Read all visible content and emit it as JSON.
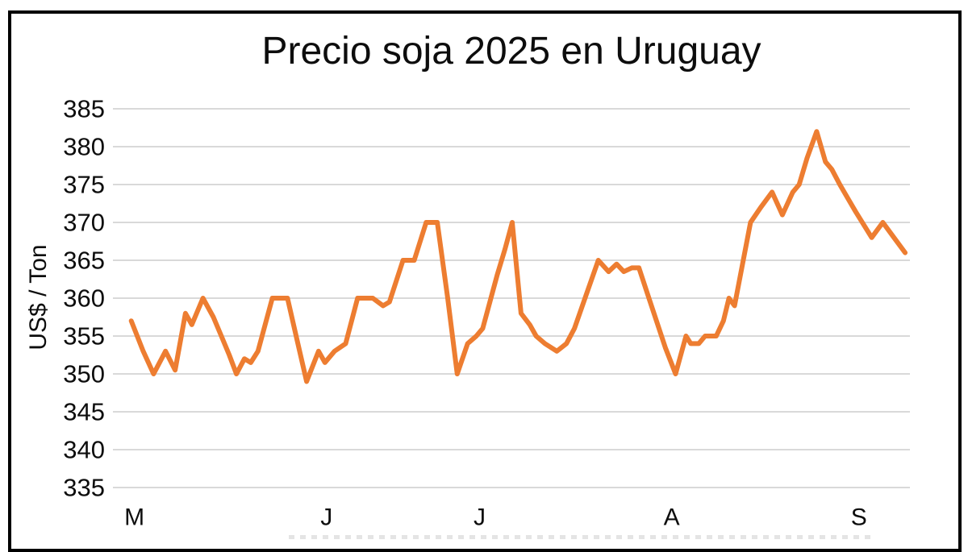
{
  "chart_data": {
    "type": "line",
    "title": "Precio soja 2025 en Uruguay",
    "ylabel": "US$ / Ton",
    "xlabel": "",
    "ylim": [
      335,
      385
    ],
    "y_ticks": [
      385,
      380,
      375,
      370,
      365,
      360,
      355,
      350,
      345,
      340,
      335
    ],
    "x_ticks": [
      {
        "label": "M",
        "pos": 0.027
      },
      {
        "label": "J",
        "pos": 0.268
      },
      {
        "label": "J",
        "pos": 0.46
      },
      {
        "label": "A",
        "pos": 0.701
      },
      {
        "label": "S",
        "pos": 0.936
      }
    ],
    "grid": true,
    "legend": "none",
    "colors": {
      "line": "#ED7D31",
      "gridline": "#D9D9D9",
      "border": "#000000",
      "text": "#0d0d0d"
    },
    "series": [
      {
        "name": "Precio soja (US$/Ton)",
        "points": [
          [
            0.023,
            357
          ],
          [
            0.038,
            353
          ],
          [
            0.051,
            350
          ],
          [
            0.066,
            353
          ],
          [
            0.078,
            350.5
          ],
          [
            0.091,
            358
          ],
          [
            0.099,
            356.5
          ],
          [
            0.113,
            360
          ],
          [
            0.126,
            357.5
          ],
          [
            0.136,
            355
          ],
          [
            0.146,
            352.5
          ],
          [
            0.155,
            350
          ],
          [
            0.165,
            352
          ],
          [
            0.173,
            351.5
          ],
          [
            0.182,
            353
          ],
          [
            0.191,
            356.5
          ],
          [
            0.2,
            360
          ],
          [
            0.21,
            360
          ],
          [
            0.219,
            360
          ],
          [
            0.231,
            354.5
          ],
          [
            0.243,
            349
          ],
          [
            0.258,
            353
          ],
          [
            0.266,
            351.5
          ],
          [
            0.278,
            353
          ],
          [
            0.292,
            354
          ],
          [
            0.307,
            360
          ],
          [
            0.316,
            360
          ],
          [
            0.326,
            360
          ],
          [
            0.339,
            359
          ],
          [
            0.347,
            359.5
          ],
          [
            0.364,
            365
          ],
          [
            0.378,
            365
          ],
          [
            0.393,
            370
          ],
          [
            0.407,
            370
          ],
          [
            0.42,
            360
          ],
          [
            0.432,
            350
          ],
          [
            0.445,
            354
          ],
          [
            0.456,
            355
          ],
          [
            0.464,
            356
          ],
          [
            0.473,
            359.5
          ],
          [
            0.482,
            363
          ],
          [
            0.492,
            366.5
          ],
          [
            0.501,
            370
          ],
          [
            0.512,
            358
          ],
          [
            0.523,
            356.5
          ],
          [
            0.531,
            355
          ],
          [
            0.542,
            354
          ],
          [
            0.557,
            353
          ],
          [
            0.569,
            354
          ],
          [
            0.579,
            356
          ],
          [
            0.594,
            360.5
          ],
          [
            0.609,
            365
          ],
          [
            0.622,
            363.5
          ],
          [
            0.632,
            364.5
          ],
          [
            0.641,
            363.5
          ],
          [
            0.651,
            364
          ],
          [
            0.66,
            364
          ],
          [
            0.671,
            360.5
          ],
          [
            0.682,
            357
          ],
          [
            0.693,
            353.5
          ],
          [
            0.706,
            350
          ],
          [
            0.719,
            355
          ],
          [
            0.725,
            354
          ],
          [
            0.735,
            354
          ],
          [
            0.743,
            355
          ],
          [
            0.757,
            355
          ],
          [
            0.766,
            357
          ],
          [
            0.773,
            360
          ],
          [
            0.78,
            359
          ],
          [
            0.79,
            364.5
          ],
          [
            0.8,
            370
          ],
          [
            0.813,
            372
          ],
          [
            0.827,
            374
          ],
          [
            0.84,
            371
          ],
          [
            0.853,
            374
          ],
          [
            0.861,
            375
          ],
          [
            0.871,
            378.5
          ],
          [
            0.883,
            382
          ],
          [
            0.894,
            378
          ],
          [
            0.902,
            377
          ],
          [
            0.912,
            375
          ],
          [
            0.922,
            373.2
          ],
          [
            0.932,
            371.4
          ],
          [
            0.942,
            369.7
          ],
          [
            0.952,
            368
          ],
          [
            0.966,
            370
          ],
          [
            0.98,
            368
          ],
          [
            0.994,
            366
          ]
        ]
      }
    ]
  }
}
